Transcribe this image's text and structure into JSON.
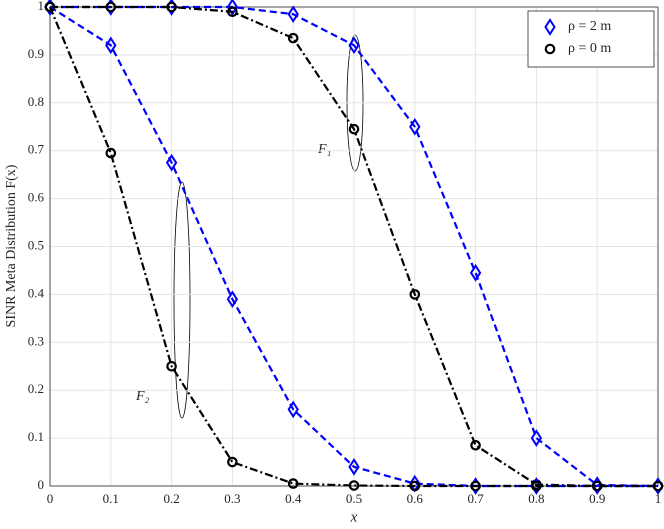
{
  "chart_data": {
    "type": "line",
    "xlabel": "x",
    "ylabel": "SINR Meta Distribution F(x)",
    "x": [
      0,
      0.1,
      0.2,
      0.3,
      0.4,
      0.5,
      0.6,
      0.7,
      0.8,
      0.9,
      1
    ],
    "series": [
      {
        "name": "ρ = 2 m",
        "color": "#0000ff",
        "marker": "diamond",
        "dash": "dashed",
        "values": [
          1,
          1,
          1,
          1,
          0.985,
          0.92,
          0.75,
          0.445,
          0.1,
          0.002,
          0
        ]
      },
      {
        "name": "ρ = 0 m",
        "color": "#000000",
        "marker": "circle",
        "dash": "dashdot",
        "values": [
          1,
          1,
          1,
          0.99,
          0.935,
          0.745,
          0.4,
          0.085,
          0.003,
          0,
          0
        ]
      },
      {
        "color": "#0000ff",
        "marker": "diamond",
        "dash": "dashed",
        "values": [
          1,
          0.92,
          0.675,
          0.39,
          0.16,
          0.04,
          0.005,
          0,
          0,
          0,
          0
        ]
      },
      {
        "color": "#000000",
        "marker": "circle",
        "dash": "dashdot",
        "values": [
          1,
          0.695,
          0.25,
          0.05,
          0.005,
          0.001,
          0,
          0,
          0,
          0,
          0
        ]
      }
    ],
    "annotations": [
      "F₁",
      "F₂"
    ],
    "xlim": [
      0,
      1
    ],
    "ylim": [
      0,
      1
    ],
    "xticks": [
      0,
      0.1,
      0.2,
      0.3,
      0.4,
      0.5,
      0.6,
      0.7,
      0.8,
      0.9,
      1
    ],
    "yticks": [
      0,
      0.1,
      0.2,
      0.3,
      0.4,
      0.5,
      0.6,
      0.7,
      0.8,
      0.9,
      1
    ],
    "grid": true,
    "legend": "upper right"
  }
}
